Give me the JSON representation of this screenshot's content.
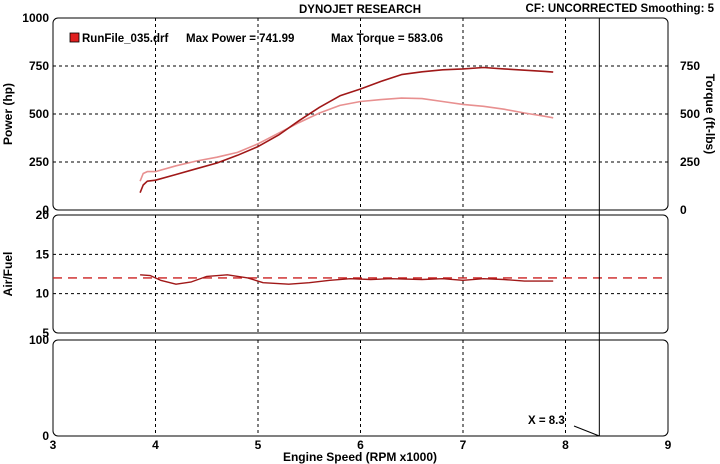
{
  "header": {
    "title": "DYNOJET RESEARCH",
    "info": "CF: UNCORRECTED  Smoothing: 5"
  },
  "legend": {
    "run_name": "RunFile_035.drf",
    "max_power_label": "Max Power = 741.99",
    "max_torque_label": "Max Torque = 583.06",
    "swatch_color": "#e02020"
  },
  "colors": {
    "power": "#a01818",
    "torque": "#e89090",
    "afr": "#a01818",
    "afr_target": "#cc2020",
    "cursor": "#000000"
  },
  "cursor_label": "X = 8.3",
  "chart_data": [
    {
      "type": "line",
      "title": "",
      "xlabel": "Engine Speed (RPM x1000)",
      "ylabel": "Power (hp)",
      "y2label": "Torque (ft-lbs)",
      "xlim": [
        3,
        9
      ],
      "ylim": [
        0,
        1000
      ],
      "y2lim": [
        0,
        1000
      ],
      "x_ticks": [
        "3",
        "4",
        "5",
        "6",
        "7",
        "8",
        "9"
      ],
      "y_ticks": [
        "0",
        "250",
        "500",
        "750",
        "1000"
      ],
      "y2_ticks": [
        "0",
        "250",
        "500",
        "750"
      ],
      "grid": true,
      "series": [
        {
          "name": "Power",
          "x": [
            3.85,
            3.88,
            3.92,
            4.0,
            4.2,
            4.4,
            4.6,
            4.8,
            5.0,
            5.2,
            5.4,
            5.6,
            5.8,
            6.0,
            6.2,
            6.4,
            6.6,
            6.8,
            7.0,
            7.2,
            7.4,
            7.6,
            7.8,
            7.88
          ],
          "values": [
            90,
            130,
            150,
            155,
            185,
            215,
            245,
            285,
            330,
            390,
            465,
            535,
            595,
            630,
            670,
            705,
            720,
            730,
            735,
            742,
            735,
            728,
            722,
            718
          ]
        },
        {
          "name": "Torque",
          "x": [
            3.85,
            3.88,
            3.92,
            4.0,
            4.2,
            4.4,
            4.6,
            4.8,
            5.0,
            5.2,
            5.4,
            5.6,
            5.8,
            6.0,
            6.2,
            6.4,
            6.6,
            6.8,
            7.0,
            7.2,
            7.4,
            7.6,
            7.8,
            7.88
          ],
          "values": [
            150,
            190,
            200,
            200,
            230,
            255,
            275,
            300,
            345,
            400,
            455,
            505,
            545,
            565,
            575,
            583,
            580,
            565,
            550,
            540,
            525,
            505,
            488,
            480
          ]
        }
      ]
    },
    {
      "type": "line",
      "title": "",
      "xlabel": "",
      "ylabel": "Air/Fuel",
      "xlim": [
        3,
        9
      ],
      "ylim": [
        5,
        20
      ],
      "y_ticks": [
        "5",
        "10",
        "15",
        "20"
      ],
      "grid": true,
      "target": 12,
      "series": [
        {
          "name": "Air/Fuel",
          "x": [
            3.85,
            3.95,
            4.05,
            4.2,
            4.35,
            4.5,
            4.7,
            4.9,
            5.05,
            5.3,
            5.5,
            5.7,
            5.9,
            6.1,
            6.3,
            6.6,
            6.8,
            7.0,
            7.2,
            7.4,
            7.6,
            7.88
          ],
          "values": [
            12.4,
            12.3,
            11.7,
            11.2,
            11.5,
            12.2,
            12.4,
            12.0,
            11.4,
            11.2,
            11.4,
            11.7,
            11.9,
            11.8,
            11.9,
            11.8,
            11.9,
            11.7,
            11.9,
            11.8,
            11.6,
            11.6
          ]
        }
      ]
    },
    {
      "type": "line",
      "title": "",
      "xlabel": "",
      "ylabel": "",
      "xlim": [
        3,
        9
      ],
      "ylim": [
        0,
        100
      ],
      "y_ticks": [
        "0",
        "100"
      ],
      "grid": true,
      "series": []
    }
  ],
  "cursor_x": 8.33
}
